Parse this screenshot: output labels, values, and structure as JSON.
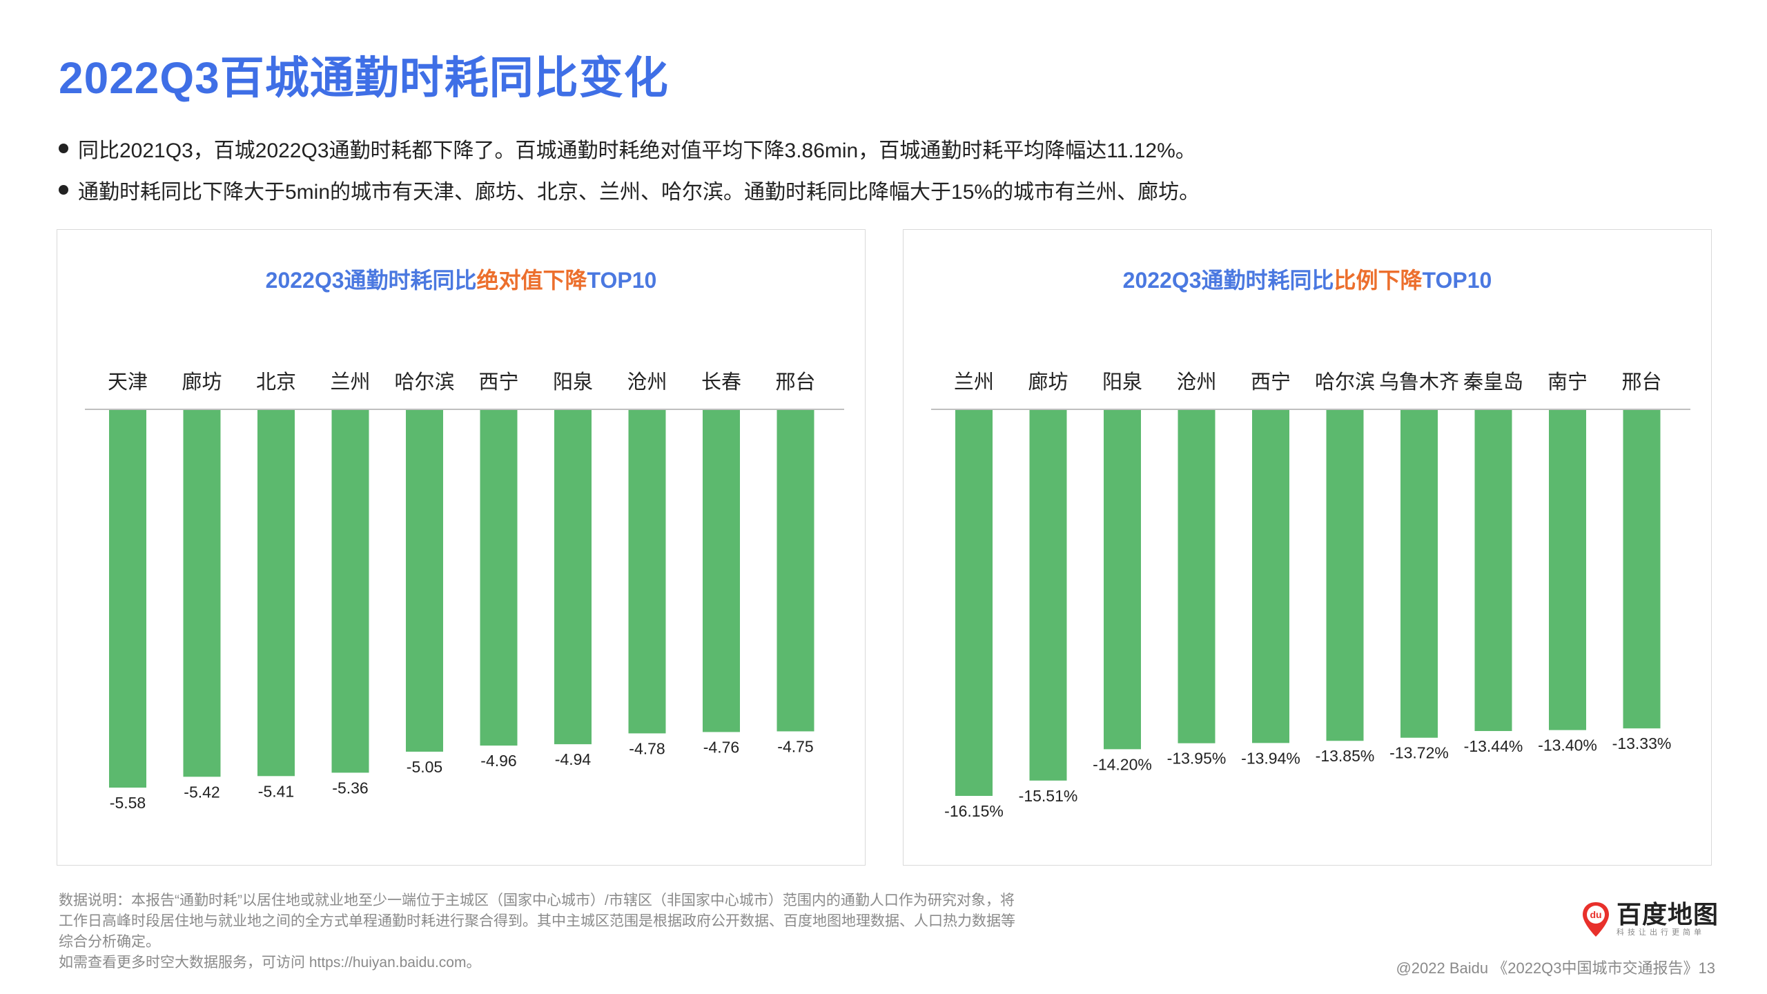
{
  "page": {
    "title": "2022Q3百城通勤时耗同比变化",
    "bullets": [
      "同比2021Q3，百城2022Q3通勤时耗都下降了。百城通勤时耗绝对值平均下降3.86min，百城通勤时耗平均降幅达11.12%。",
      "通勤时耗同比下降大于5min的城市有天津、廊坊、北京、兰州、哈尔滨。通勤时耗同比降幅大于15%的城市有兰州、廊坊。"
    ],
    "footnote": [
      "数据说明：本报告“通勤时耗”以居住地或就业地至少一端位于主城区（国家中心城市）/市辖区（非国家中心城市）范围内的通勤人口作为研究对象，将",
      "工作日高峰时段居住地与就业地之间的全方式单程通勤时耗进行聚合得到。其中主城区范围是根据政府公开数据、百度地图地理数据、人口热力数据等",
      "综合分析确定。",
      "如需查看更多时空大数据服务，可访问 https://huiyan.baidu.com。"
    ],
    "logo": {
      "name": "百度地图",
      "slogan": "科技让出行更简单",
      "mark": "du"
    },
    "copyright": "@2022 Baidu 《2022Q3中国城市交通报告》13"
  },
  "colors": {
    "title": "#3f6fe6",
    "chart_title": "#4a78e0",
    "highlight": "#ec6f2d",
    "bar": "#5cb96e",
    "logo_red": "#e8302b"
  },
  "chart_data": [
    {
      "type": "bar",
      "title_parts": [
        "2022Q3通勤时耗同比",
        "绝对值下降",
        "TOP10"
      ],
      "categories": [
        "天津",
        "廊坊",
        "北京",
        "兰州",
        "哈尔滨",
        "西宁",
        "阳泉",
        "沧州",
        "长春",
        "邢台"
      ],
      "values": [
        -5.58,
        -5.42,
        -5.41,
        -5.36,
        -5.05,
        -4.96,
        -4.94,
        -4.78,
        -4.76,
        -4.75
      ],
      "labels": [
        "-5.58",
        "-5.42",
        "-5.41",
        "-5.36",
        "-5.05",
        "-4.96",
        "-4.94",
        "-4.78",
        "-4.76",
        "-4.75"
      ],
      "ylim": [
        -5.58,
        0
      ],
      "grid": false,
      "legend": "none"
    },
    {
      "type": "bar",
      "title_parts": [
        "2022Q3通勤时耗同比",
        "比例下降",
        "TOP10"
      ],
      "categories": [
        "兰州",
        "廊坊",
        "阳泉",
        "沧州",
        "西宁",
        "哈尔滨",
        "乌鲁木齐",
        "秦皇岛",
        "南宁",
        "邢台"
      ],
      "values": [
        -16.15,
        -15.51,
        -14.2,
        -13.95,
        -13.94,
        -13.85,
        -13.72,
        -13.44,
        -13.4,
        -13.33
      ],
      "labels": [
        "-16.15%",
        "-15.51%",
        "-14.20%",
        "-13.95%",
        "-13.94%",
        "-13.85%",
        "-13.72%",
        "-13.44%",
        "-13.40%",
        "-13.33%"
      ],
      "ylim": [
        -16.15,
        0
      ],
      "grid": false,
      "legend": "none"
    }
  ]
}
